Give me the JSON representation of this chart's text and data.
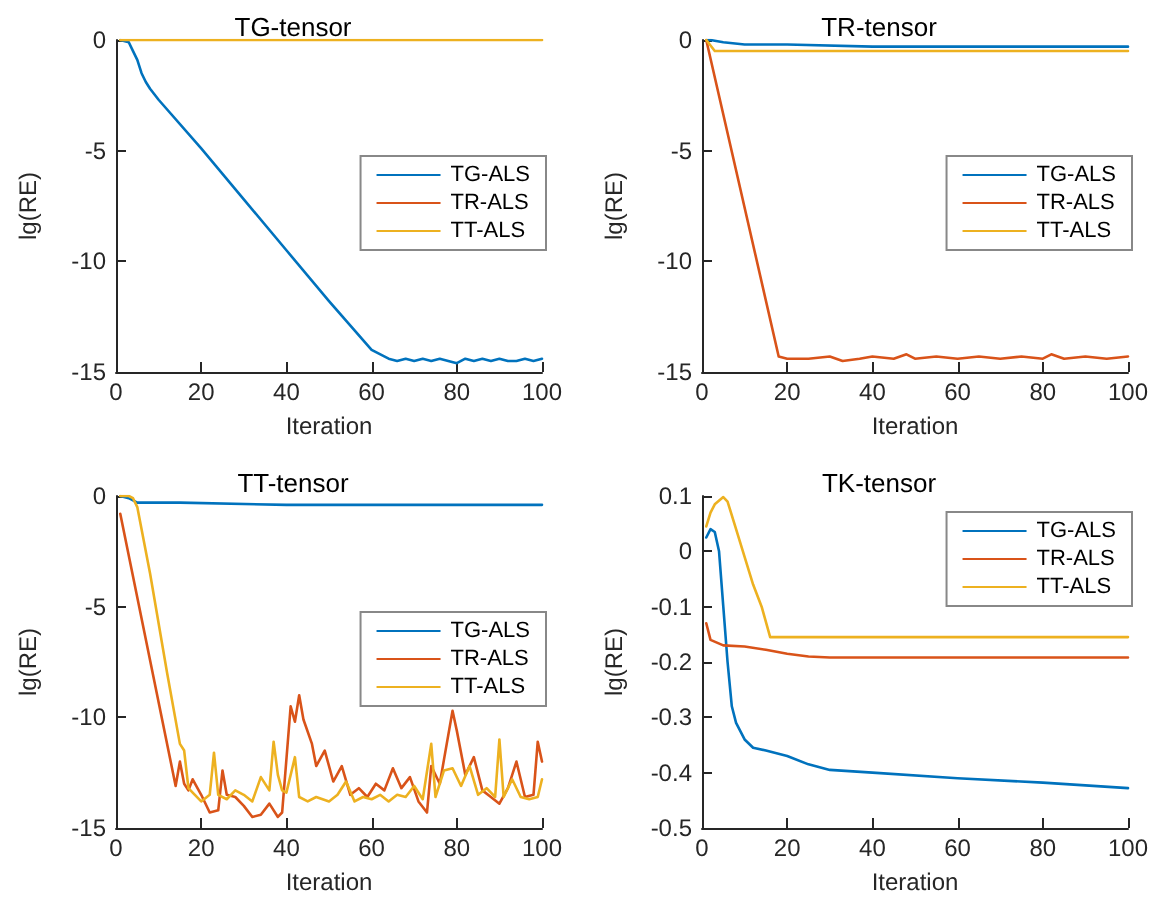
{
  "chart_data": [
    {
      "type": "line",
      "title": "TG-tensor",
      "xlabel": "Iteration",
      "ylabel": "lg(RE)",
      "xlim": [
        0,
        100
      ],
      "xticks": [
        0,
        20,
        40,
        60,
        80,
        100
      ],
      "ylim": [
        -15,
        0
      ],
      "yticks": [
        -15,
        -10,
        -5,
        0
      ],
      "grid": false,
      "legend": "right",
      "marker": "none",
      "line_style": "solid",
      "series": [
        {
          "name": "TG-ALS",
          "color": "#0072bd",
          "x": [
            1,
            3,
            4,
            5,
            6,
            7,
            8,
            10,
            20,
            30,
            40,
            50,
            60,
            64,
            66,
            68,
            70,
            72,
            74,
            76,
            78,
            80,
            82,
            84,
            86,
            88,
            90,
            92,
            94,
            96,
            98,
            100
          ],
          "values": [
            0,
            -0.1,
            -0.5,
            -0.9,
            -1.5,
            -1.9,
            -2.2,
            -2.7,
            -4.9,
            -7.2,
            -9.5,
            -11.8,
            -14.0,
            -14.4,
            -14.5,
            -14.4,
            -14.5,
            -14.4,
            -14.5,
            -14.4,
            -14.5,
            -14.6,
            -14.4,
            -14.5,
            -14.4,
            -14.5,
            -14.4,
            -14.5,
            -14.5,
            -14.4,
            -14.5,
            -14.4
          ]
        },
        {
          "name": "TR-ALS",
          "color": "#d95319"
        },
        {
          "name": "TT-ALS",
          "color": "#edb120",
          "x": [
            1,
            100
          ],
          "values": [
            0,
            0
          ]
        }
      ]
    },
    {
      "type": "line",
      "title": "TR-tensor",
      "xlabel": "Iteration",
      "ylabel": "lg(RE)",
      "xlim": [
        0,
        100
      ],
      "xticks": [
        0,
        20,
        40,
        60,
        80,
        100
      ],
      "ylim": [
        -15,
        0
      ],
      "yticks": [
        -15,
        -10,
        -5,
        0
      ],
      "grid": false,
      "legend": "right",
      "marker": "none",
      "line_style": "solid",
      "series": [
        {
          "name": "TG-ALS",
          "color": "#0072bd",
          "x": [
            1,
            2,
            5,
            10,
            20,
            40,
            60,
            80,
            100
          ],
          "values": [
            0,
            0,
            -0.1,
            -0.2,
            -0.2,
            -0.3,
            -0.3,
            -0.3,
            -0.3
          ]
        },
        {
          "name": "TR-ALS",
          "color": "#d95319",
          "x": [
            1,
            18,
            20,
            25,
            30,
            33,
            37,
            40,
            45,
            48,
            50,
            55,
            60,
            65,
            70,
            75,
            80,
            82,
            85,
            90,
            95,
            100
          ],
          "values": [
            0,
            -14.3,
            -14.4,
            -14.4,
            -14.3,
            -14.5,
            -14.4,
            -14.3,
            -14.4,
            -14.2,
            -14.4,
            -14.3,
            -14.4,
            -14.3,
            -14.4,
            -14.3,
            -14.4,
            -14.2,
            -14.4,
            -14.3,
            -14.4,
            -14.3
          ]
        },
        {
          "name": "TT-ALS",
          "color": "#edb120",
          "x": [
            1,
            3,
            100
          ],
          "values": [
            0,
            -0.5,
            -0.5
          ]
        }
      ]
    },
    {
      "type": "line",
      "title": "TT-tensor",
      "xlabel": "Iteration",
      "ylabel": "lg(RE)",
      "xlim": [
        0,
        100
      ],
      "xticks": [
        0,
        20,
        40,
        60,
        80,
        100
      ],
      "ylim": [
        -15,
        0
      ],
      "yticks": [
        -15,
        -10,
        -5,
        0
      ],
      "grid": false,
      "legend": "right",
      "marker": "none",
      "line_style": "solid",
      "series": [
        {
          "name": "TG-ALS",
          "color": "#0072bd",
          "x": [
            1,
            3,
            5,
            15,
            40,
            100
          ],
          "values": [
            0,
            -0.1,
            -0.3,
            -0.3,
            -0.4,
            -0.4
          ]
        },
        {
          "name": "TR-ALS",
          "color": "#d95319",
          "x": [
            1,
            14,
            15,
            16,
            17,
            18,
            20,
            22,
            24,
            25,
            26,
            28,
            30,
            32,
            34,
            36,
            38,
            39,
            41,
            42,
            43,
            44,
            46,
            47,
            49,
            51,
            53,
            55,
            57,
            59,
            61,
            63,
            65,
            67,
            69,
            71,
            73,
            74,
            76,
            77,
            79,
            80,
            82,
            84,
            86,
            88,
            90,
            92,
            94,
            96,
            98,
            99,
            100
          ],
          "values": [
            -0.8,
            -13.1,
            -12.0,
            -13.0,
            -13.3,
            -12.8,
            -13.5,
            -14.3,
            -14.2,
            -12.4,
            -13.5,
            -13.6,
            -14.0,
            -14.5,
            -14.4,
            -13.9,
            -14.5,
            -14.3,
            -9.5,
            -10.2,
            -9.0,
            -10.1,
            -11.2,
            -12.2,
            -11.5,
            -12.9,
            -12.2,
            -13.5,
            -13.2,
            -13.6,
            -13.0,
            -13.3,
            -12.3,
            -13.2,
            -12.7,
            -13.8,
            -14.3,
            -12.2,
            -13.0,
            -11.9,
            -9.7,
            -10.6,
            -12.6,
            -11.8,
            -13.3,
            -13.6,
            -13.9,
            -13.2,
            -12.0,
            -13.6,
            -13.5,
            -11.1,
            -12.0
          ]
        },
        {
          "name": "TT-ALS",
          "color": "#edb120",
          "x": [
            1,
            3,
            4,
            5,
            8,
            12,
            15,
            16,
            17,
            18,
            20,
            22,
            23,
            24,
            26,
            28,
            30,
            32,
            34,
            36,
            37,
            38,
            39,
            40,
            42,
            43,
            45,
            47,
            50,
            52,
            54,
            56,
            58,
            60,
            62,
            64,
            66,
            68,
            70,
            72,
            74,
            75,
            77,
            79,
            81,
            83,
            85,
            87,
            89,
            90,
            91,
            93,
            95,
            97,
            99,
            100
          ],
          "values": [
            0,
            0,
            -0.1,
            -0.5,
            -3.5,
            -8.0,
            -11.2,
            -11.5,
            -13.2,
            -13.4,
            -13.8,
            -13.5,
            -11.6,
            -13.5,
            -13.7,
            -13.3,
            -13.5,
            -13.8,
            -12.7,
            -13.3,
            -11.1,
            -12.6,
            -13.3,
            -13.4,
            -11.8,
            -13.6,
            -13.8,
            -13.6,
            -13.8,
            -13.5,
            -12.9,
            -13.8,
            -13.6,
            -13.7,
            -13.5,
            -13.8,
            -13.5,
            -13.6,
            -13.1,
            -13.7,
            -11.2,
            -13.6,
            -12.4,
            -12.3,
            -13.1,
            -12.2,
            -13.5,
            -13.2,
            -13.6,
            -11.0,
            -13.6,
            -12.8,
            -13.6,
            -13.7,
            -13.6,
            -12.8
          ]
        }
      ]
    },
    {
      "type": "line",
      "title": "TK-tensor",
      "xlabel": "Iteration",
      "ylabel": "lg(RE)",
      "xlim": [
        0,
        100
      ],
      "xticks": [
        0,
        20,
        40,
        60,
        80,
        100
      ],
      "ylim": [
        -0.5,
        0.1
      ],
      "yticks": [
        -0.5,
        -0.4,
        -0.3,
        -0.2,
        -0.1,
        0,
        0.1
      ],
      "grid": false,
      "legend": "top right",
      "marker": "none",
      "line_style": "solid",
      "series": [
        {
          "name": "TG-ALS",
          "color": "#0072bd",
          "x": [
            1,
            2,
            3,
            4,
            5,
            6,
            7,
            8,
            10,
            12,
            15,
            20,
            25,
            30,
            40,
            60,
            80,
            100
          ],
          "values": [
            0.025,
            0.04,
            0.035,
            0.0,
            -0.1,
            -0.2,
            -0.28,
            -0.31,
            -0.34,
            -0.355,
            -0.36,
            -0.37,
            -0.385,
            -0.395,
            -0.4,
            -0.41,
            -0.418,
            -0.428
          ]
        },
        {
          "name": "TR-ALS",
          "color": "#d95319",
          "x": [
            1,
            2,
            5,
            10,
            15,
            20,
            25,
            30,
            100
          ],
          "values": [
            -0.13,
            -0.16,
            -0.17,
            -0.172,
            -0.178,
            -0.185,
            -0.19,
            -0.192,
            -0.192
          ]
        },
        {
          "name": "TT-ALS",
          "color": "#edb120",
          "x": [
            1,
            2,
            3,
            5,
            6,
            8,
            10,
            12,
            14,
            16,
            100
          ],
          "values": [
            0.045,
            0.07,
            0.085,
            0.098,
            0.09,
            0.04,
            -0.01,
            -0.06,
            -0.1,
            -0.155,
            -0.155
          ]
        }
      ]
    }
  ]
}
